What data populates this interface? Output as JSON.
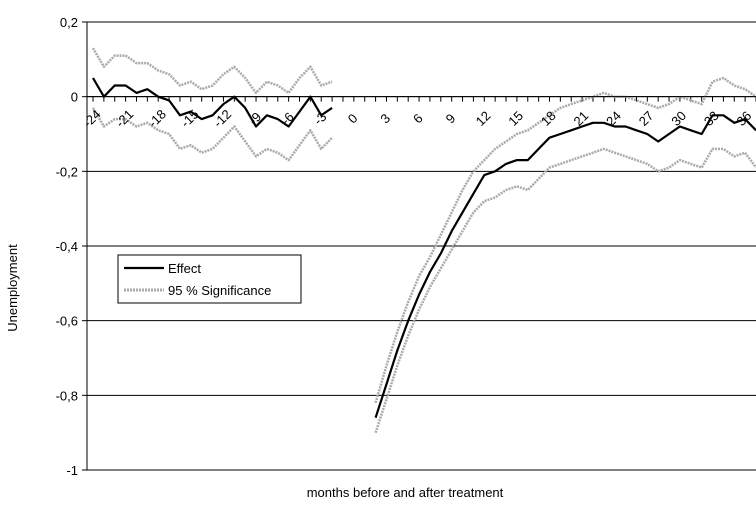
{
  "chart_data": {
    "type": "line",
    "xlabel": "months before and after treatment",
    "ylabel": "Unemployment",
    "xlim": [
      -24,
      37
    ],
    "ylim": [
      -1,
      0.2
    ],
    "x_ticks": [
      -24,
      -21,
      -18,
      -15,
      -12,
      -9,
      -6,
      -3,
      0,
      3,
      6,
      9,
      12,
      15,
      18,
      21,
      24,
      27,
      30,
      33,
      36
    ],
    "x_tick_labels": [
      "-24",
      "-21",
      "-18",
      "-15",
      "-12",
      "-9",
      "-6",
      "-3",
      "0",
      "3",
      "6",
      "9",
      "12",
      "15",
      "18",
      "21",
      "24",
      "27",
      "30",
      "33",
      "36"
    ],
    "y_ticks": [
      0.2,
      0,
      -0.2,
      -0.4,
      -0.6,
      -0.8,
      -1
    ],
    "y_tick_labels": [
      "0,2",
      "0",
      "-0,2",
      "-0,4",
      "-0,6",
      "-0,8",
      "-1"
    ],
    "grid": "horizontal",
    "legend": {
      "position": "left",
      "entries": [
        "Effect",
        "95 % Significance"
      ]
    },
    "series": [
      {
        "name": "Effect",
        "color": "#000000",
        "segments": [
          [
            [
              -24,
              0.05
            ],
            [
              -23,
              0.0
            ],
            [
              -22,
              0.03
            ],
            [
              -21,
              0.03
            ],
            [
              -20,
              0.01
            ],
            [
              -19,
              0.02
            ],
            [
              -18,
              0.0
            ],
            [
              -17,
              -0.01
            ],
            [
              -16,
              -0.05
            ],
            [
              -15,
              -0.04
            ],
            [
              -14,
              -0.06
            ],
            [
              -13,
              -0.05
            ],
            [
              -12,
              -0.02
            ],
            [
              -11,
              0.0
            ],
            [
              -10,
              -0.03
            ],
            [
              -9,
              -0.08
            ],
            [
              -8,
              -0.05
            ],
            [
              -7,
              -0.06
            ],
            [
              -6,
              -0.08
            ],
            [
              -5,
              -0.04
            ],
            [
              -4,
              0.0
            ],
            [
              -3,
              -0.05
            ],
            [
              -2,
              -0.03
            ]
          ],
          [
            [
              2,
              -0.86
            ],
            [
              3,
              -0.77
            ],
            [
              4,
              -0.68
            ],
            [
              5,
              -0.6
            ],
            [
              6,
              -0.53
            ],
            [
              7,
              -0.47
            ],
            [
              8,
              -0.42
            ],
            [
              9,
              -0.36
            ],
            [
              10,
              -0.31
            ],
            [
              11,
              -0.26
            ],
            [
              12,
              -0.21
            ],
            [
              13,
              -0.2
            ],
            [
              14,
              -0.18
            ],
            [
              15,
              -0.17
            ],
            [
              16,
              -0.17
            ],
            [
              17,
              -0.14
            ],
            [
              18,
              -0.11
            ],
            [
              19,
              -0.1
            ],
            [
              20,
              -0.09
            ],
            [
              21,
              -0.08
            ],
            [
              22,
              -0.07
            ],
            [
              23,
              -0.07
            ],
            [
              24,
              -0.08
            ],
            [
              25,
              -0.08
            ],
            [
              26,
              -0.09
            ],
            [
              27,
              -0.1
            ],
            [
              28,
              -0.12
            ],
            [
              29,
              -0.1
            ],
            [
              30,
              -0.08
            ],
            [
              31,
              -0.09
            ],
            [
              32,
              -0.1
            ],
            [
              33,
              -0.05
            ],
            [
              34,
              -0.05
            ],
            [
              35,
              -0.07
            ],
            [
              36,
              -0.06
            ],
            [
              37,
              -0.09
            ]
          ]
        ]
      },
      {
        "name": "95 % Significance",
        "color": "#aaaaaa",
        "segments": [
          [
            [
              -24,
              0.13
            ],
            [
              -23,
              0.08
            ],
            [
              -22,
              0.11
            ],
            [
              -21,
              0.11
            ],
            [
              -20,
              0.09
            ],
            [
              -19,
              0.09
            ],
            [
              -18,
              0.07
            ],
            [
              -17,
              0.06
            ],
            [
              -16,
              0.03
            ],
            [
              -15,
              0.04
            ],
            [
              -14,
              0.02
            ],
            [
              -13,
              0.03
            ],
            [
              -12,
              0.06
            ],
            [
              -11,
              0.08
            ],
            [
              -10,
              0.05
            ],
            [
              -9,
              0.01
            ],
            [
              -8,
              0.04
            ],
            [
              -7,
              0.03
            ],
            [
              -6,
              0.01
            ],
            [
              -5,
              0.05
            ],
            [
              -4,
              0.08
            ],
            [
              -3,
              0.03
            ],
            [
              -2,
              0.04
            ]
          ],
          [
            [
              -24,
              -0.03
            ],
            [
              -23,
              -0.08
            ],
            [
              -22,
              -0.06
            ],
            [
              -21,
              -0.06
            ],
            [
              -20,
              -0.08
            ],
            [
              -19,
              -0.07
            ],
            [
              -18,
              -0.09
            ],
            [
              -17,
              -0.1
            ],
            [
              -16,
              -0.14
            ],
            [
              -15,
              -0.13
            ],
            [
              -14,
              -0.15
            ],
            [
              -13,
              -0.14
            ],
            [
              -12,
              -0.11
            ],
            [
              -11,
              -0.08
            ],
            [
              -10,
              -0.12
            ],
            [
              -9,
              -0.16
            ],
            [
              -8,
              -0.14
            ],
            [
              -7,
              -0.15
            ],
            [
              -6,
              -0.17
            ],
            [
              -5,
              -0.13
            ],
            [
              -4,
              -0.09
            ],
            [
              -3,
              -0.14
            ],
            [
              -2,
              -0.11
            ]
          ],
          [
            [
              2,
              -0.82
            ],
            [
              3,
              -0.72
            ],
            [
              4,
              -0.63
            ],
            [
              5,
              -0.55
            ],
            [
              6,
              -0.48
            ],
            [
              7,
              -0.43
            ],
            [
              8,
              -0.37
            ],
            [
              9,
              -0.31
            ],
            [
              10,
              -0.25
            ],
            [
              11,
              -0.2
            ],
            [
              12,
              -0.17
            ],
            [
              13,
              -0.14
            ],
            [
              14,
              -0.12
            ],
            [
              15,
              -0.1
            ],
            [
              16,
              -0.09
            ],
            [
              17,
              -0.07
            ],
            [
              18,
              -0.05
            ],
            [
              19,
              -0.03
            ],
            [
              20,
              -0.02
            ],
            [
              21,
              -0.01
            ],
            [
              22,
              0.0
            ],
            [
              23,
              0.01
            ],
            [
              24,
              0.0
            ],
            [
              25,
              0.0
            ],
            [
              26,
              -0.01
            ],
            [
              27,
              -0.02
            ],
            [
              28,
              -0.03
            ],
            [
              29,
              -0.02
            ],
            [
              30,
              0.0
            ],
            [
              31,
              -0.01
            ],
            [
              32,
              -0.02
            ],
            [
              33,
              0.04
            ],
            [
              34,
              0.05
            ],
            [
              35,
              0.03
            ],
            [
              36,
              0.02
            ],
            [
              37,
              0.0
            ]
          ],
          [
            [
              2,
              -0.9
            ],
            [
              3,
              -0.81
            ],
            [
              4,
              -0.72
            ],
            [
              5,
              -0.64
            ],
            [
              6,
              -0.57
            ],
            [
              7,
              -0.51
            ],
            [
              8,
              -0.46
            ],
            [
              9,
              -0.41
            ],
            [
              10,
              -0.36
            ],
            [
              11,
              -0.31
            ],
            [
              12,
              -0.28
            ],
            [
              13,
              -0.27
            ],
            [
              14,
              -0.25
            ],
            [
              15,
              -0.24
            ],
            [
              16,
              -0.25
            ],
            [
              17,
              -0.22
            ],
            [
              18,
              -0.19
            ],
            [
              19,
              -0.18
            ],
            [
              20,
              -0.17
            ],
            [
              21,
              -0.16
            ],
            [
              22,
              -0.15
            ],
            [
              23,
              -0.14
            ],
            [
              24,
              -0.15
            ],
            [
              25,
              -0.16
            ],
            [
              26,
              -0.17
            ],
            [
              27,
              -0.18
            ],
            [
              28,
              -0.2
            ],
            [
              29,
              -0.19
            ],
            [
              30,
              -0.17
            ],
            [
              31,
              -0.18
            ],
            [
              32,
              -0.19
            ],
            [
              33,
              -0.14
            ],
            [
              34,
              -0.14
            ],
            [
              35,
              -0.16
            ],
            [
              36,
              -0.15
            ],
            [
              37,
              -0.19
            ]
          ]
        ]
      }
    ]
  }
}
